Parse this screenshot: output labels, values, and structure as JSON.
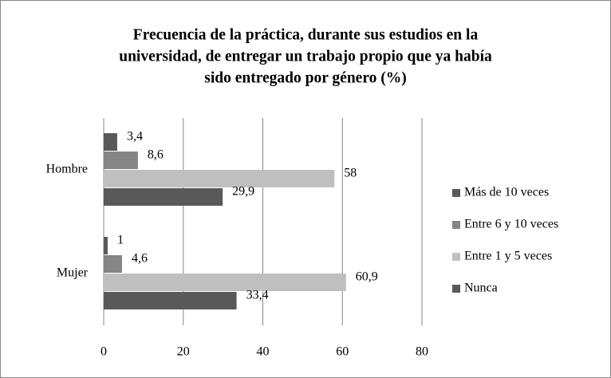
{
  "chart_data": {
    "type": "hbar",
    "title": [
      "Frecuencia de la práctica, durante sus estudios en la",
      "universidad, de entregar un trabajo propio que ya había",
      "sido entregado por género (%)"
    ],
    "categories": [
      "Hombre",
      "Mujer"
    ],
    "series": [
      {
        "name": "Más de 10 veces",
        "color": "#595959",
        "values": [
          3.4,
          1
        ],
        "value_labels": [
          "3,4",
          "1"
        ]
      },
      {
        "name": "Entre 6 y 10 veces",
        "color": "#858585",
        "values": [
          8.6,
          4.6
        ],
        "value_labels": [
          "8,6",
          "4,6"
        ]
      },
      {
        "name": "Entre 1 y 5 veces",
        "color": "#bfbfbf",
        "values": [
          58,
          60.9
        ],
        "value_labels": [
          "58",
          "60,9"
        ]
      },
      {
        "name": "Nunca",
        "color": "#595959",
        "values": [
          29.9,
          33.4
        ],
        "value_labels": [
          "29,9",
          "33,4"
        ]
      }
    ],
    "xlim": [
      0,
      80
    ],
    "xticks": [
      0,
      20,
      40,
      60,
      80
    ],
    "grid": true,
    "legend": "right"
  }
}
